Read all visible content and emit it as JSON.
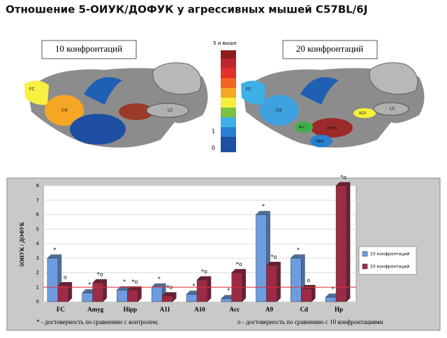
{
  "title": "Отношение 5-ОИУК/ДОФУК у агрессивных мышей C57BL/6J",
  "brain_maps": [
    {
      "label": "10 конфронтаций",
      "regions": [
        "FC",
        "Cd",
        "LC"
      ]
    },
    {
      "label": "20 конфронтаций",
      "regions": [
        "FC",
        "LC",
        "Cd",
        "A10",
        "Acc",
        "Hipp",
        "Amyg"
      ]
    }
  ],
  "scale": {
    "top_label": "5 и выше",
    "labels": [
      "1",
      "0"
    ]
  },
  "chart_data": {
    "type": "bar",
    "y_label": "5ОИУК / ДОФУК",
    "categories": [
      "FC",
      "Amyg",
      "Hipp",
      "A11",
      "A10",
      "Acc",
      "A9",
      "Cd",
      "Hp"
    ],
    "series": [
      {
        "name": "10 конфронтаций",
        "color": "#6d9de0",
        "values": [
          3.0,
          0.6,
          0.8,
          1.0,
          0.5,
          0.2,
          6.0,
          3.0,
          0.3
        ],
        "markers": [
          "*",
          "*",
          "*",
          "*",
          "*",
          "*",
          "*",
          "*",
          "*"
        ]
      },
      {
        "name": "20 конфронтаций",
        "color": "#9c2b47",
        "values": [
          1.1,
          1.3,
          0.8,
          0.4,
          1.5,
          2.0,
          2.5,
          0.9,
          8.0
        ],
        "markers": [
          "o",
          "*o",
          "*o",
          "*o",
          "*o",
          "*o",
          "*o",
          "o",
          "*o"
        ]
      }
    ],
    "reference_line": 1,
    "reference_color": "#e0303a",
    "ylim": [
      0,
      8
    ],
    "yticks": [
      0,
      1,
      2,
      3,
      4,
      5,
      6,
      7,
      8
    ],
    "grid": true,
    "legend": "right"
  },
  "footnote": [
    "* - достоверность по сравнению с контролем;",
    "o - достоверность по сравнению с 10 конфронтациями"
  ]
}
